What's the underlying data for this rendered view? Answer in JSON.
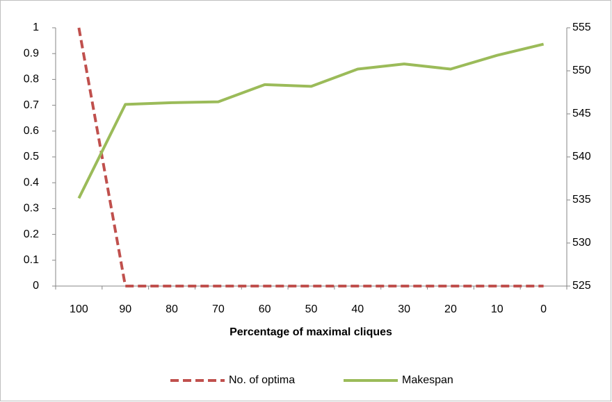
{
  "chart_data": {
    "type": "line",
    "xlabel": "Percentage of maximal cliques",
    "categories": [
      "100",
      "90",
      "80",
      "70",
      "60",
      "50",
      "40",
      "30",
      "20",
      "10",
      "0"
    ],
    "series": [
      {
        "name": "No. of optima",
        "color": "#c0504d",
        "dashed": true,
        "values": [
          1,
          0,
          0,
          0,
          0,
          0,
          0,
          0,
          0,
          0,
          0
        ]
      },
      {
        "name": "Makespan",
        "color": "#9bbb59",
        "axis": "y2",
        "values": [
          535.2,
          546.1,
          546.3,
          546.4,
          548.4,
          548.2,
          550.2,
          550.8,
          550.2,
          551.8,
          553.1
        ]
      }
    ],
    "ylim": [
      0,
      1
    ],
    "yticks": [
      0,
      0.1,
      0.2,
      0.3,
      0.4,
      0.5,
      0.6,
      0.7,
      0.8,
      0.9,
      1
    ],
    "y2lim": [
      525,
      555
    ],
    "y2ticks": [
      525,
      530,
      535,
      540,
      545,
      550,
      555
    ],
    "grid": false,
    "legend": "bottom"
  }
}
